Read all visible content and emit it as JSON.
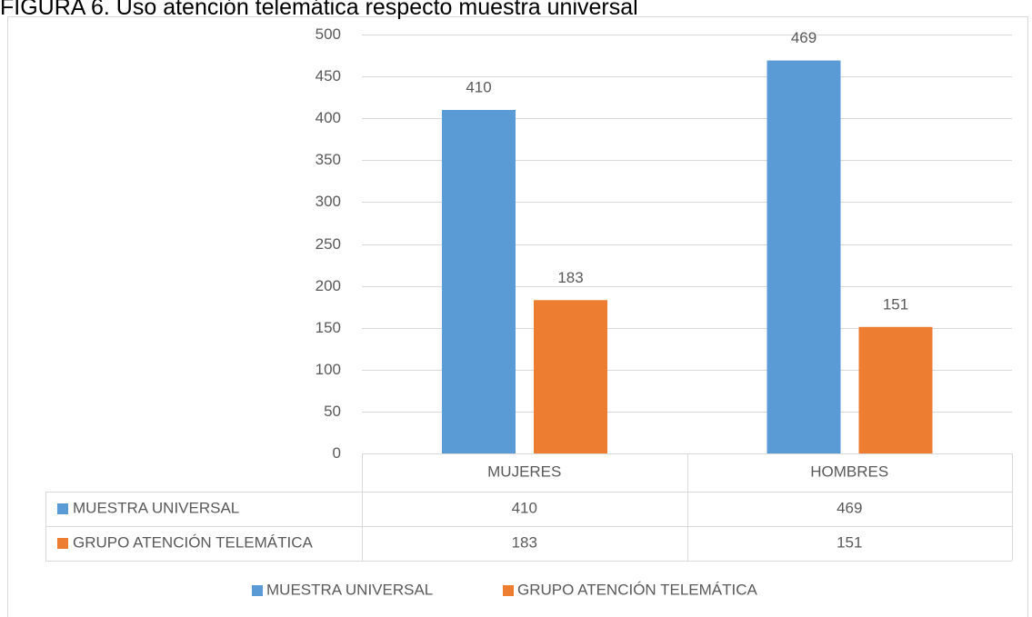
{
  "chart_data": {
    "type": "bar",
    "title": "FIGURA 6. Uso atención telemática respecto muestra universal",
    "categories": [
      "MUJERES",
      "HOMBRES"
    ],
    "series": [
      {
        "name": "MUESTRA UNIVERSAL",
        "color": "#5b9bd5",
        "values": [
          410,
          469
        ]
      },
      {
        "name": "GRUPO ATENCIÓN TELEMÁTICA",
        "color": "#ed7d31",
        "values": [
          183,
          151
        ]
      }
    ],
    "ylim": [
      0,
      500
    ],
    "yticks": [
      0,
      50,
      100,
      150,
      200,
      250,
      300,
      350,
      400,
      450,
      500
    ],
    "grid": true,
    "data_table": true,
    "legend": "bottom"
  }
}
